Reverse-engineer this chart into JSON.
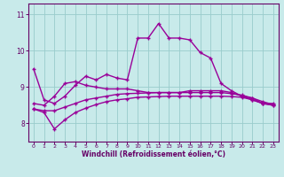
{
  "xlabel": "Windchill (Refroidissement éolien,°C)",
  "background_color": "#c8eaea",
  "line_color": "#990099",
  "grid_color": "#99cccc",
  "spine_color": "#660066",
  "xlim": [
    -0.5,
    23.5
  ],
  "ylim": [
    7.5,
    11.3
  ],
  "yticks": [
    8,
    9,
    10,
    11
  ],
  "xticks": [
    0,
    1,
    2,
    3,
    4,
    5,
    6,
    7,
    8,
    9,
    10,
    11,
    12,
    13,
    14,
    15,
    16,
    17,
    18,
    19,
    20,
    21,
    22,
    23
  ],
  "series": [
    [
      9.5,
      8.65,
      8.55,
      8.75,
      9.05,
      9.3,
      9.2,
      9.35,
      9.25,
      9.2,
      10.35,
      10.35,
      10.75,
      10.35,
      10.35,
      10.3,
      9.95,
      9.8,
      9.1,
      8.9,
      8.75,
      8.7,
      8.55,
      8.55
    ],
    [
      8.55,
      8.5,
      8.75,
      9.1,
      9.15,
      9.05,
      9.0,
      8.95,
      8.95,
      8.95,
      8.9,
      8.85,
      8.85,
      8.85,
      8.85,
      8.9,
      8.9,
      8.9,
      8.9,
      8.85,
      8.75,
      8.65,
      8.55,
      8.5
    ],
    [
      8.4,
      8.35,
      8.35,
      8.45,
      8.55,
      8.65,
      8.7,
      8.75,
      8.8,
      8.82,
      8.83,
      8.84,
      8.85,
      8.85,
      8.85,
      8.85,
      8.85,
      8.85,
      8.85,
      8.82,
      8.78,
      8.7,
      8.6,
      8.52
    ],
    [
      8.4,
      8.3,
      7.85,
      8.1,
      8.3,
      8.42,
      8.52,
      8.6,
      8.65,
      8.68,
      8.72,
      8.73,
      8.74,
      8.75,
      8.75,
      8.75,
      8.75,
      8.75,
      8.75,
      8.74,
      8.72,
      8.65,
      8.55,
      8.5
    ]
  ]
}
